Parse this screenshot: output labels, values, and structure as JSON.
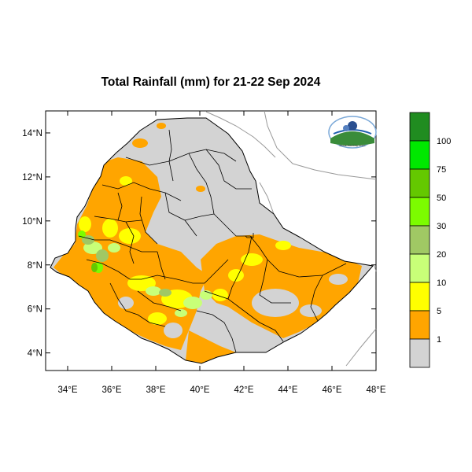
{
  "title": "Total Rainfall (mm) for 21-22 Sep 2024",
  "axes": {
    "lat_labels": [
      "14°N",
      "12°N",
      "10°N",
      "8°N",
      "6°N",
      "4°N"
    ],
    "lat_values": [
      14,
      12,
      10,
      8,
      6,
      4
    ],
    "lon_labels": [
      "34°E",
      "36°E",
      "38°E",
      "40°E",
      "42°E",
      "44°E",
      "46°E",
      "48°E"
    ],
    "lon_values": [
      34,
      36,
      38,
      40,
      42,
      44,
      46,
      48
    ],
    "lon_range": [
      33,
      48
    ],
    "lat_range": [
      3.2,
      15
    ]
  },
  "legend": {
    "thresholds": [
      "100",
      "75",
      "50",
      "30",
      "20",
      "10",
      "5",
      "1"
    ],
    "colors": [
      "#208c20",
      "#00e800",
      "#64c800",
      "#7cfc00",
      "#a0c864",
      "#c8ff78",
      "#ffff00",
      "#ffa500",
      "#d3d3d3"
    ]
  },
  "logo": {
    "text": "Ethiopian Meteorology Institute"
  },
  "colors": {
    "land": "#d3d3d3",
    "rain_1": "#ffa500",
    "rain_5": "#ffff00",
    "rain_10": "#c8ff78",
    "rain_20": "#a0c864",
    "rain_30": "#7cfc00",
    "rain_50": "#64c800",
    "coast_line": "#999999"
  }
}
